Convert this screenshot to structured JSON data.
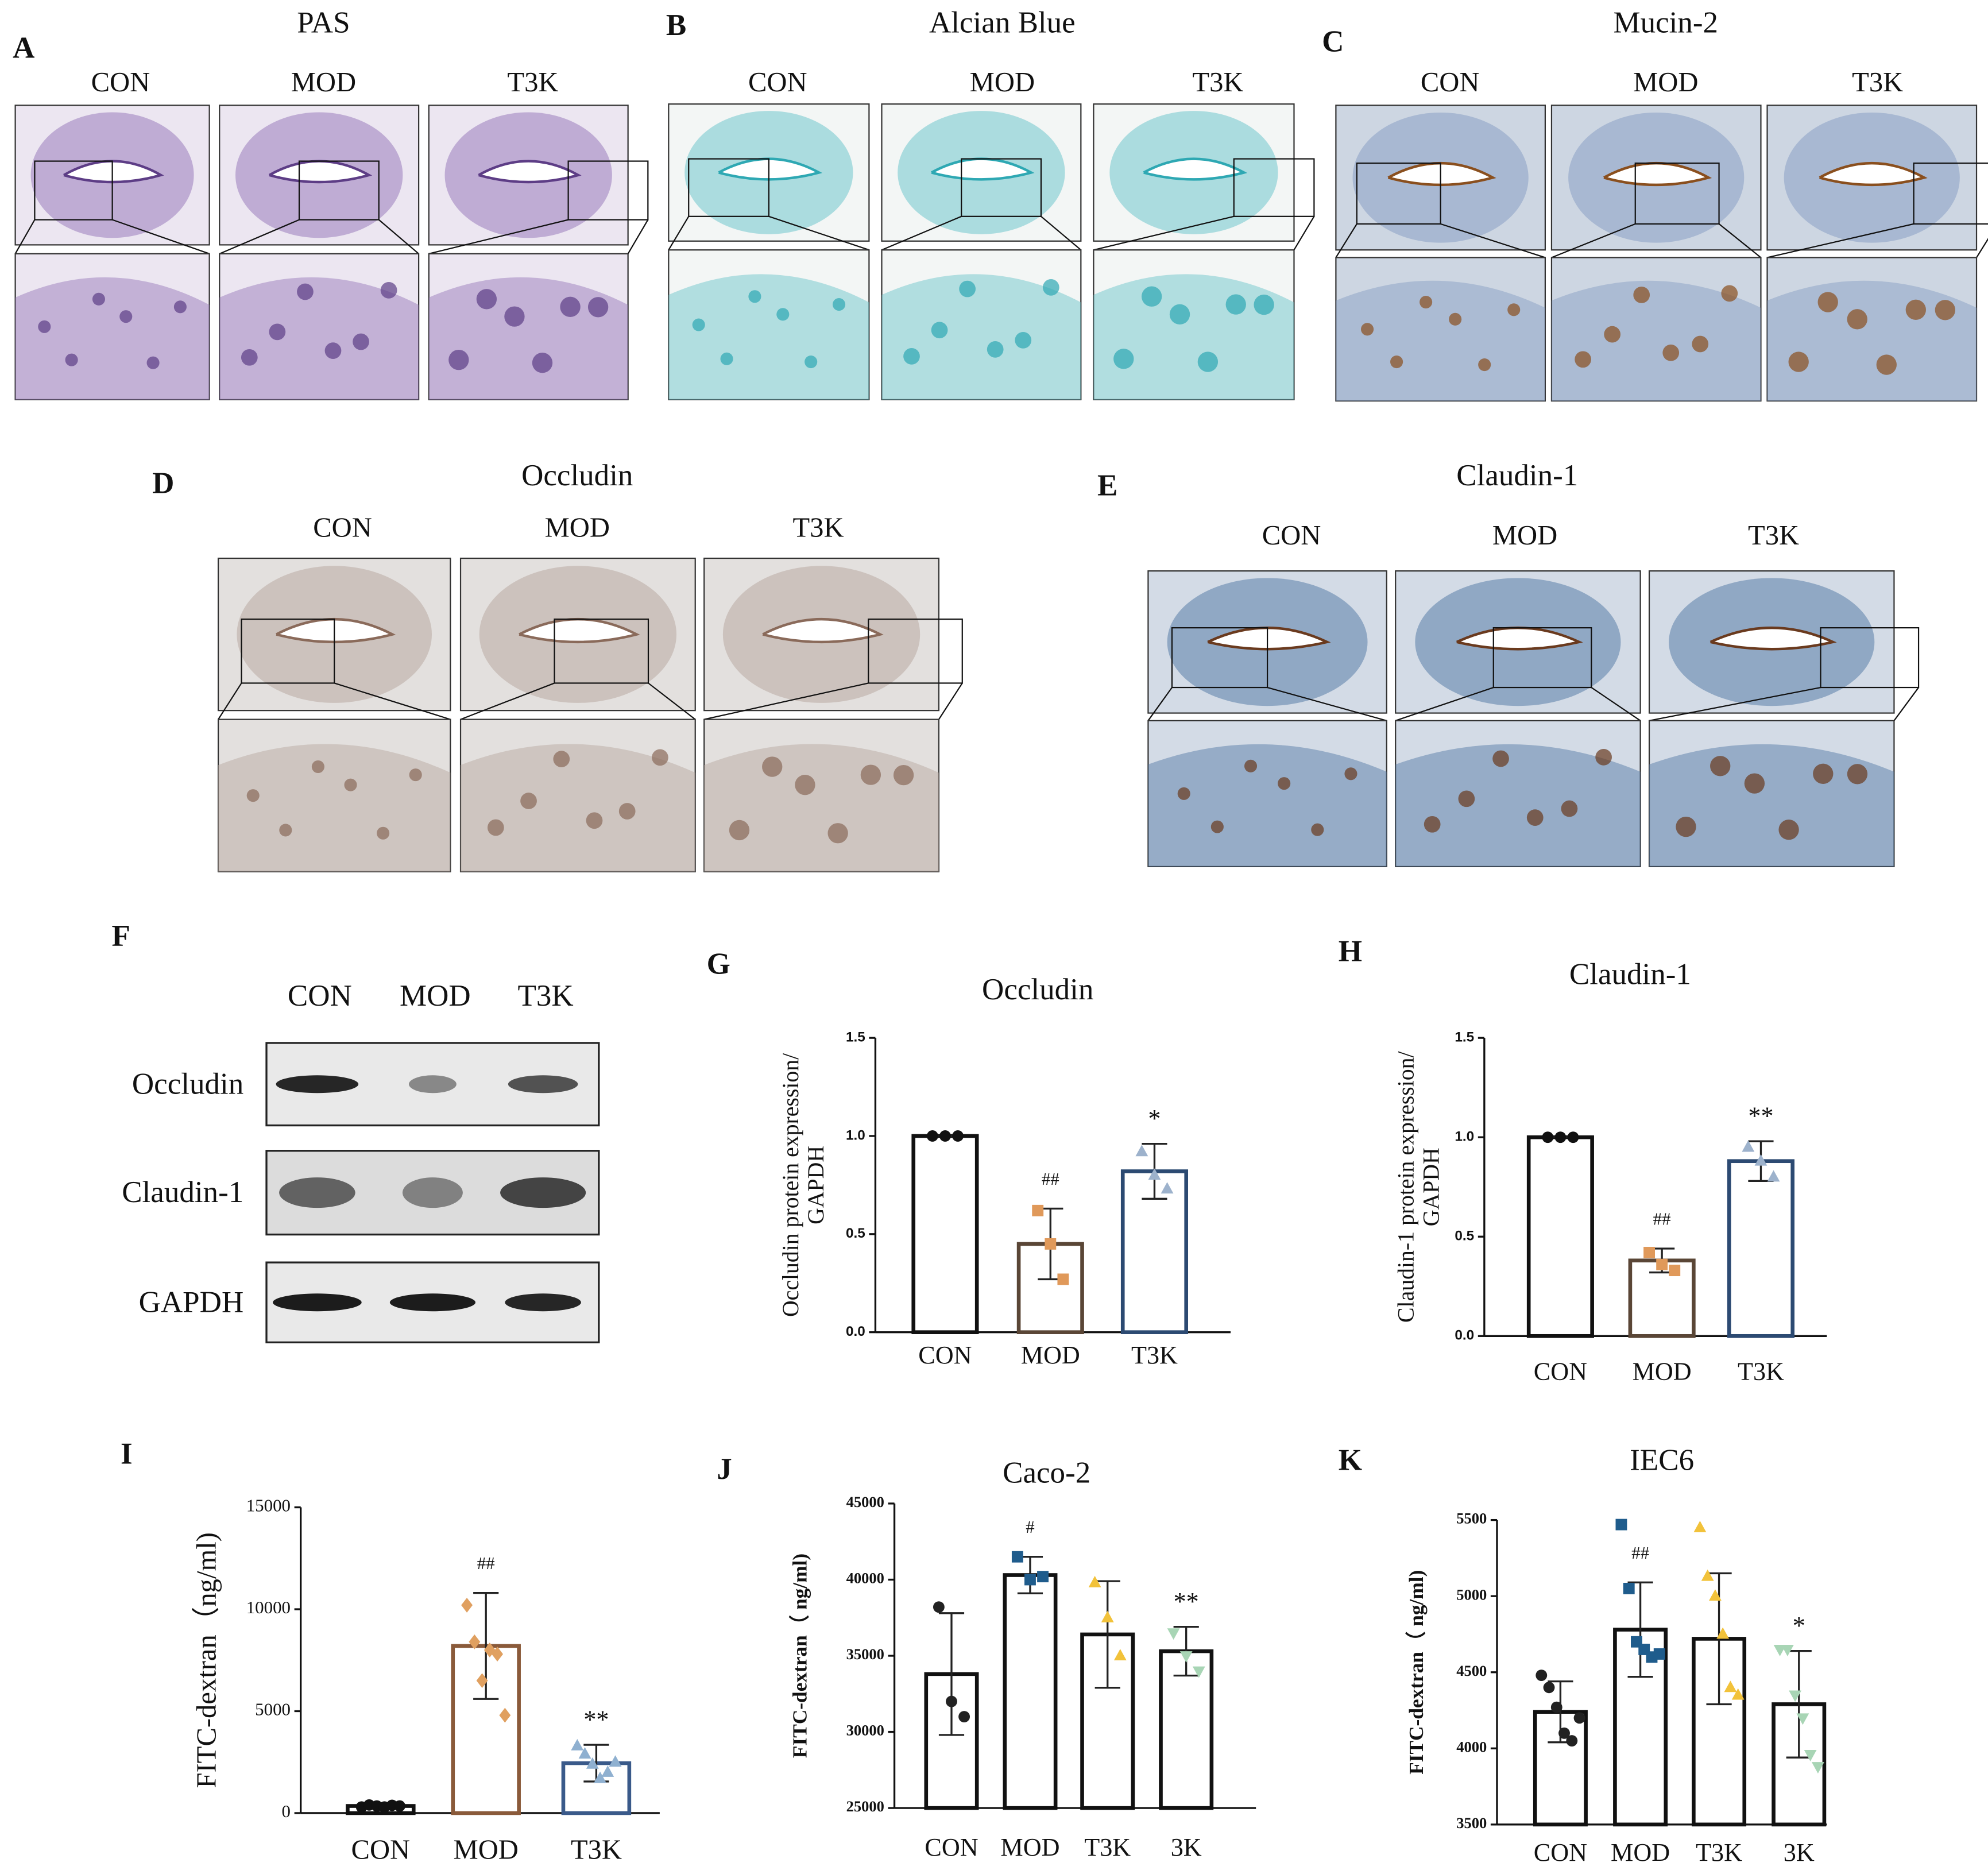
{
  "panels": [
    {
      "letter": "A",
      "title": "PAS",
      "columns": [
        "CON",
        "MOD",
        "T3K"
      ]
    },
    {
      "letter": "B",
      "title": "Alcian Blue",
      "columns": [
        "CON",
        "MOD",
        "T3K"
      ]
    },
    {
      "letter": "C",
      "title": "Mucin-2",
      "columns": [
        "CON",
        "MOD",
        "T3K"
      ]
    },
    {
      "letter": "D",
      "title": "Occludin",
      "columns": [
        "CON",
        "MOD",
        "T3K"
      ]
    },
    {
      "letter": "E",
      "title": "Claudin-1",
      "columns": [
        "CON",
        "MOD",
        "T3K"
      ]
    }
  ],
  "blot": {
    "letter": "F",
    "columns": [
      "CON",
      "MOD",
      "T3K"
    ],
    "rows": [
      "Occludin",
      "Claudin-1",
      "GAPDH"
    ]
  },
  "chart_data": [
    {
      "type": "bar",
      "panel_label": "G",
      "title": "Occludin",
      "y_label": [
        "Occludin protein expression/",
        "GAPDH"
      ],
      "categories": [
        "CON",
        "MOD",
        "T3K"
      ],
      "values": [
        1.0,
        0.45,
        0.82
      ],
      "errors": [
        0,
        0.18,
        0.14
      ],
      "points": [
        [
          1.0,
          1.0,
          1.0
        ],
        [
          0.62,
          0.45,
          0.27
        ],
        [
          0.92,
          0.8,
          0.73
        ]
      ],
      "colors": [
        "#111111",
        "#5a4636",
        "#2c4a72"
      ],
      "point_colors": [
        "#111111",
        "#e0995a",
        "#9db2cc"
      ],
      "markers": [
        "circle",
        "square",
        "triangle"
      ],
      "annotations": [
        {
          "category": "MOD",
          "text": "##"
        },
        {
          "category": "T3K",
          "text": "*"
        }
      ],
      "ylim": [
        0,
        1.5
      ],
      "yticks": [
        {
          "value": 0,
          "label": "0.0"
        },
        0.5,
        {
          "value": 1,
          "label": "1.0"
        },
        1.5
      ]
    },
    {
      "type": "bar",
      "panel_label": "H",
      "title": "Claudin-1",
      "y_label": [
        "Claudin-1 protein expression/",
        "GAPDH"
      ],
      "categories": [
        "CON",
        "MOD",
        "T3K"
      ],
      "values": [
        1.0,
        0.38,
        0.88
      ],
      "errors": [
        0,
        0.06,
        0.1
      ],
      "points": [
        [
          1.0,
          1.0,
          1.0
        ],
        [
          0.42,
          0.36,
          0.33
        ],
        [
          0.95,
          0.88,
          0.8
        ]
      ],
      "colors": [
        "#111111",
        "#5a4636",
        "#2c4a72"
      ],
      "point_colors": [
        "#111111",
        "#e0995a",
        "#9db2cc"
      ],
      "markers": [
        "circle",
        "square",
        "triangle"
      ],
      "annotations": [
        {
          "category": "MOD",
          "text": "##"
        },
        {
          "category": "T3K",
          "text": "**"
        }
      ],
      "ylim": [
        0,
        1.5
      ],
      "yticks": [
        {
          "value": 0,
          "label": "0.0"
        },
        0.5,
        {
          "value": 1,
          "label": "1.0"
        },
        1.5
      ]
    },
    {
      "type": "bar",
      "panel_label": "I",
      "y_label": [
        "FITC-dextran（ng/ml)"
      ],
      "categories": [
        "CON",
        "MOD",
        "T3K"
      ],
      "values": [
        350,
        8200,
        2450
      ],
      "errors": [
        100,
        2600,
        900
      ],
      "points": [
        [
          300,
          400,
          350,
          300,
          380,
          350
        ],
        [
          10200,
          8400,
          6500,
          8000,
          7800,
          4800
        ],
        [
          3300,
          2900,
          2400,
          1700,
          2000,
          2500
        ]
      ],
      "colors": [
        "#111111",
        "#8a5a3a",
        "#3a5a8a"
      ],
      "point_colors": [
        "#111111",
        "#e0a060",
        "#8fb0d0"
      ],
      "markers": [
        "circle",
        "diamond",
        "triangle"
      ],
      "annotations": [
        {
          "category": "MOD",
          "text": "##"
        },
        {
          "category": "T3K",
          "text": "**"
        }
      ],
      "ylim": [
        0,
        15000
      ],
      "yticks": [
        0,
        5000,
        10000,
        15000
      ]
    },
    {
      "type": "bar",
      "panel_label": "J",
      "title": "Caco-2",
      "y_label": [
        "FITC-dextran（ ng/ml)"
      ],
      "categories": [
        "CON",
        "MOD",
        "T3K",
        "3K"
      ],
      "values": [
        33800,
        40300,
        36400,
        35300
      ],
      "errors": [
        4000,
        1200,
        3500,
        1600
      ],
      "points": [
        [
          38200,
          32000,
          31000
        ],
        [
          41500,
          40000,
          40200
        ],
        [
          39800,
          37500,
          35000
        ],
        [
          36500,
          35000,
          34000
        ]
      ],
      "colors": [
        "#111111",
        "#111111",
        "#111111",
        "#111111"
      ],
      "point_colors": [
        "#222222",
        "#1f5c8c",
        "#f2c23a",
        "#a8d5b5"
      ],
      "markers": [
        "circle",
        "square",
        "triangle",
        "invtriangle"
      ],
      "annotations": [
        {
          "category": "MOD",
          "text": "#"
        },
        {
          "category": "3K",
          "text": "**"
        }
      ],
      "ylim": [
        25000,
        45000
      ],
      "yticks": [
        25000,
        30000,
        35000,
        40000,
        45000
      ]
    },
    {
      "type": "bar",
      "panel_label": "K",
      "title": "IEC6",
      "y_label": [
        "FITC-dextran（ ng/ml)"
      ],
      "categories": [
        "CON",
        "MOD",
        "T3K",
        "3K"
      ],
      "values": [
        4240,
        4780,
        4720,
        4290
      ],
      "errors": [
        200,
        310,
        430,
        350
      ],
      "points": [
        [
          4480,
          4400,
          4270,
          4100,
          4050,
          4200
        ],
        [
          5470,
          5050,
          4700,
          4650,
          4600,
          4620
        ],
        [
          5450,
          5130,
          5000,
          4750,
          4400,
          4350
        ],
        [
          4650,
          4650,
          4350,
          4200,
          3960,
          3880
        ]
      ],
      "colors": [
        "#111111",
        "#111111",
        "#111111",
        "#111111"
      ],
      "point_colors": [
        "#222222",
        "#1f5c8c",
        "#f2c23a",
        "#a8d5b5"
      ],
      "markers": [
        "circle",
        "square",
        "triangle",
        "invtriangle"
      ],
      "annotations": [
        {
          "category": "MOD",
          "text": "##"
        },
        {
          "category": "3K",
          "text": "*"
        }
      ],
      "ylim": [
        3500,
        5500
      ],
      "yticks": [
        3500,
        4000,
        4500,
        5000,
        5500
      ]
    }
  ]
}
